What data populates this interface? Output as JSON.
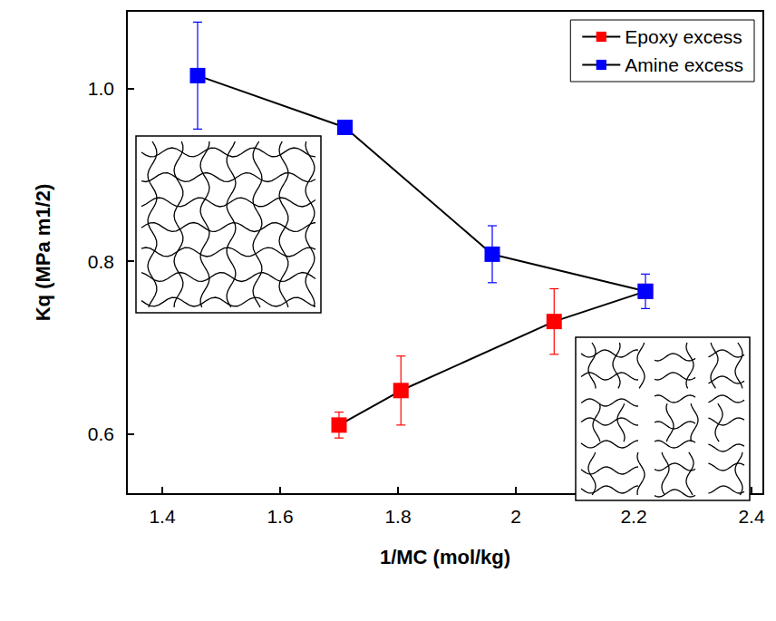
{
  "chart_data": {
    "type": "line",
    "xlabel": "1/MC (mol/kg)",
    "ylabel": "Kq (MPa m1/2)",
    "xlim": [
      1.34,
      2.42
    ],
    "ylim": [
      0.53,
      1.09
    ],
    "xticks": [
      1.4,
      1.6,
      1.8,
      2.0,
      2.2,
      2.4
    ],
    "yticks": [
      0.6,
      0.8,
      {
        "value": 1.0,
        "label": "1.0"
      }
    ],
    "grid": false,
    "legend": "upper right",
    "marker": "square",
    "line_style": "solid",
    "series": [
      {
        "name": "Epoxy excess",
        "color": "#ff0000",
        "x": [
          1.7,
          1.805,
          2.065,
          2.22
        ],
        "values": [
          0.61,
          0.65,
          0.73,
          0.765
        ],
        "errors": [
          0.015,
          0.04,
          0.038,
          null
        ]
      },
      {
        "name": "Amine excess",
        "color": "#0000ff",
        "x": [
          1.46,
          1.71,
          1.96,
          2.22
        ],
        "values": [
          1.015,
          0.955,
          0.808,
          0.765
        ],
        "errors": [
          0.062,
          null,
          0.033,
          0.02
        ]
      }
    ]
  }
}
